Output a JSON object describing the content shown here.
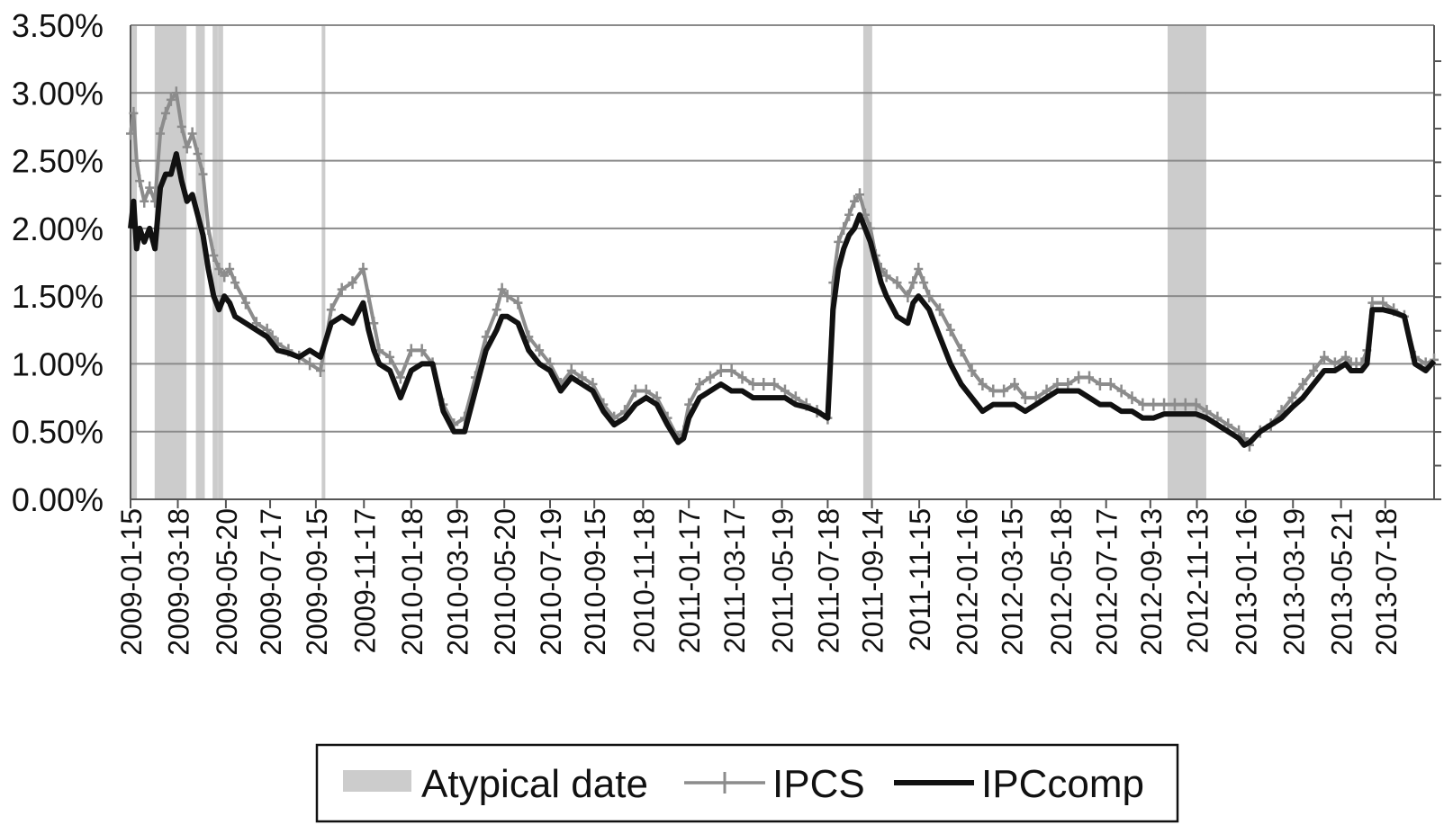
{
  "chart_data": {
    "type": "line",
    "title": "",
    "xlabel": "",
    "ylabel": "",
    "x_range": [
      "2009-01-15",
      "2013-09-20"
    ],
    "ylim": [
      0,
      0.035
    ],
    "y_ticks": [
      0,
      0.005,
      0.01,
      0.015,
      0.02,
      0.025,
      0.03,
      0.035
    ],
    "y_tick_labels": [
      "0.00%",
      "0.50%",
      "1.00%",
      "1.50%",
      "2.00%",
      "2.50%",
      "3.00%",
      "3.50%"
    ],
    "x_tick_labels": [
      "2009-01-15",
      "2009-03-18",
      "2009-05-20",
      "2009-07-17",
      "2009-09-15",
      "2009-11-17",
      "2010-01-18",
      "2010-03-19",
      "2010-05-20",
      "2010-07-19",
      "2010-09-15",
      "2010-11-18",
      "2011-01-17",
      "2011-03-17",
      "2011-05-19",
      "2011-07-18",
      "2011-09-14",
      "2011-11-15",
      "2012-01-16",
      "2012-03-15",
      "2012-05-18",
      "2012-07-17",
      "2012-09-13",
      "2012-11-13",
      "2013-01-16",
      "2013-03-19",
      "2013-05-21",
      "2013-07-18"
    ],
    "grid": true,
    "legend_position": "bottom",
    "colors": {
      "atypical": "#cccccc",
      "ipcs": "#8c8c8c",
      "ipccomp": "#111111",
      "grid": "#8a8a8a"
    },
    "atypical_dates": [
      "2009-01-16",
      "2009-01-19",
      "2009-01-21",
      "2009-02-18",
      "2009-02-20",
      "2009-02-23",
      "2009-02-25",
      "2009-02-27",
      "2009-03-02",
      "2009-03-04",
      "2009-03-06",
      "2009-03-09",
      "2009-03-11",
      "2009-03-13",
      "2009-03-16",
      "2009-03-18",
      "2009-03-20",
      "2009-03-23",
      "2009-03-25",
      "2009-03-27",
      "2009-04-13",
      "2009-04-15",
      "2009-04-17",
      "2009-04-20",
      "2009-05-05",
      "2009-05-07",
      "2009-05-12",
      "2009-05-14",
      "2009-09-25",
      "2011-09-05",
      "2011-09-07",
      "2011-09-09",
      "2011-09-12",
      "2012-10-08",
      "2012-10-10",
      "2012-10-12",
      "2012-10-15",
      "2012-10-17",
      "2012-10-19",
      "2012-10-22",
      "2012-10-24",
      "2012-10-26",
      "2012-10-29",
      "2012-10-31",
      "2012-11-02",
      "2012-11-05",
      "2012-11-07",
      "2012-11-09",
      "2012-11-12",
      "2012-11-14",
      "2012-11-16",
      "2012-11-19",
      "2012-11-21",
      "2012-11-23"
    ],
    "series": [
      {
        "name": "IPCS",
        "x": [
          "2009-01-15",
          "2009-01-19",
          "2009-01-23",
          "2009-01-27",
          "2009-02-02",
          "2009-02-09",
          "2009-02-16",
          "2009-02-23",
          "2009-03-02",
          "2009-03-09",
          "2009-03-16",
          "2009-03-23",
          "2009-03-30",
          "2009-04-06",
          "2009-04-13",
          "2009-04-20",
          "2009-04-27",
          "2009-05-04",
          "2009-05-11",
          "2009-05-18",
          "2009-05-25",
          "2009-06-01",
          "2009-06-15",
          "2009-06-29",
          "2009-07-13",
          "2009-07-20",
          "2009-07-27",
          "2009-08-10",
          "2009-08-24",
          "2009-09-07",
          "2009-09-21",
          "2009-10-05",
          "2009-10-19",
          "2009-11-02",
          "2009-11-16",
          "2009-11-23",
          "2009-11-30",
          "2009-12-07",
          "2009-12-21",
          "2010-01-04",
          "2010-01-18",
          "2010-02-01",
          "2010-02-15",
          "2010-03-01",
          "2010-03-15",
          "2010-03-29",
          "2010-04-12",
          "2010-04-26",
          "2010-05-10",
          "2010-05-17",
          "2010-05-24",
          "2010-06-07",
          "2010-06-21",
          "2010-07-05",
          "2010-07-19",
          "2010-08-02",
          "2010-08-16",
          "2010-08-30",
          "2010-09-13",
          "2010-09-27",
          "2010-10-11",
          "2010-10-25",
          "2010-11-08",
          "2010-11-22",
          "2010-12-06",
          "2010-12-20",
          "2011-01-03",
          "2011-01-10",
          "2011-01-17",
          "2011-01-31",
          "2011-02-14",
          "2011-02-28",
          "2011-03-14",
          "2011-03-28",
          "2011-04-11",
          "2011-04-25",
          "2011-05-09",
          "2011-05-23",
          "2011-06-06",
          "2011-06-20",
          "2011-07-04",
          "2011-07-18",
          "2011-07-25",
          "2011-08-01",
          "2011-08-08",
          "2011-08-15",
          "2011-08-22",
          "2011-08-29",
          "2011-09-05",
          "2011-09-12",
          "2011-09-19",
          "2011-09-26",
          "2011-10-03",
          "2011-10-17",
          "2011-10-31",
          "2011-11-07",
          "2011-11-14",
          "2011-11-21",
          "2011-11-28",
          "2011-12-12",
          "2011-12-26",
          "2012-01-09",
          "2012-01-23",
          "2012-02-06",
          "2012-02-20",
          "2012-03-05",
          "2012-03-19",
          "2012-04-02",
          "2012-04-16",
          "2012-04-30",
          "2012-05-14",
          "2012-05-28",
          "2012-06-11",
          "2012-06-25",
          "2012-07-09",
          "2012-07-23",
          "2012-08-06",
          "2012-08-20",
          "2012-09-03",
          "2012-09-17",
          "2012-10-01",
          "2012-10-15",
          "2012-10-29",
          "2012-11-12",
          "2012-11-26",
          "2012-12-10",
          "2012-12-24",
          "2013-01-07",
          "2013-01-14",
          "2013-01-21",
          "2013-02-04",
          "2013-02-18",
          "2013-03-04",
          "2013-03-18",
          "2013-04-01",
          "2013-04-15",
          "2013-04-29",
          "2013-05-13",
          "2013-05-27",
          "2013-06-03",
          "2013-06-10",
          "2013-06-17",
          "2013-06-24",
          "2013-07-01",
          "2013-07-15",
          "2013-07-29",
          "2013-08-12",
          "2013-08-26",
          "2013-09-09",
          "2013-09-20"
        ],
        "values": [
          0.027,
          0.0285,
          0.025,
          0.0235,
          0.022,
          0.023,
          0.022,
          0.027,
          0.0285,
          0.0295,
          0.03,
          0.0275,
          0.026,
          0.027,
          0.0255,
          0.024,
          0.02,
          0.018,
          0.017,
          0.0165,
          0.017,
          0.016,
          0.0145,
          0.013,
          0.0125,
          0.012,
          0.0115,
          0.011,
          0.0105,
          0.01,
          0.0095,
          0.014,
          0.0155,
          0.016,
          0.017,
          0.015,
          0.013,
          0.011,
          0.0105,
          0.009,
          0.011,
          0.011,
          0.01,
          0.007,
          0.0055,
          0.006,
          0.009,
          0.012,
          0.014,
          0.0155,
          0.015,
          0.0145,
          0.012,
          0.011,
          0.01,
          0.0085,
          0.0095,
          0.009,
          0.0085,
          0.007,
          0.006,
          0.0065,
          0.008,
          0.008,
          0.0075,
          0.006,
          0.0045,
          0.005,
          0.007,
          0.0085,
          0.009,
          0.0095,
          0.0095,
          0.009,
          0.0085,
          0.0085,
          0.0085,
          0.008,
          0.0075,
          0.007,
          0.0065,
          0.006,
          0.016,
          0.019,
          0.02,
          0.021,
          0.022,
          0.0225,
          0.021,
          0.02,
          0.018,
          0.017,
          0.0165,
          0.016,
          0.015,
          0.016,
          0.017,
          0.016,
          0.015,
          0.014,
          0.0125,
          0.011,
          0.0095,
          0.0085,
          0.008,
          0.008,
          0.0085,
          0.0075,
          0.0075,
          0.008,
          0.0085,
          0.0085,
          0.009,
          0.009,
          0.0085,
          0.0085,
          0.008,
          0.0075,
          0.007,
          0.007,
          0.007,
          0.007,
          0.007,
          0.007,
          0.0065,
          0.006,
          0.0055,
          0.005,
          0.0045,
          0.004,
          0.005,
          0.0055,
          0.0065,
          0.0075,
          0.0085,
          0.0095,
          0.0105,
          0.01,
          0.0105,
          0.01,
          0.01,
          0.01,
          0.011,
          0.0145,
          0.0145,
          0.014,
          0.0135,
          0.0105,
          0.01,
          0.0103
        ]
      },
      {
        "name": "IPCcomp",
        "x": [
          "2009-01-15",
          "2009-01-19",
          "2009-01-23",
          "2009-01-27",
          "2009-02-02",
          "2009-02-09",
          "2009-02-16",
          "2009-02-23",
          "2009-03-02",
          "2009-03-09",
          "2009-03-16",
          "2009-03-23",
          "2009-03-30",
          "2009-04-06",
          "2009-04-13",
          "2009-04-20",
          "2009-04-27",
          "2009-05-04",
          "2009-05-11",
          "2009-05-18",
          "2009-05-25",
          "2009-06-01",
          "2009-06-15",
          "2009-06-29",
          "2009-07-13",
          "2009-07-20",
          "2009-07-27",
          "2009-08-10",
          "2009-08-24",
          "2009-09-07",
          "2009-09-21",
          "2009-10-05",
          "2009-10-19",
          "2009-11-02",
          "2009-11-16",
          "2009-11-23",
          "2009-11-30",
          "2009-12-07",
          "2009-12-21",
          "2010-01-04",
          "2010-01-18",
          "2010-02-01",
          "2010-02-15",
          "2010-03-01",
          "2010-03-15",
          "2010-03-29",
          "2010-04-12",
          "2010-04-26",
          "2010-05-10",
          "2010-05-17",
          "2010-05-24",
          "2010-06-07",
          "2010-06-21",
          "2010-07-05",
          "2010-07-19",
          "2010-08-02",
          "2010-08-16",
          "2010-08-30",
          "2010-09-13",
          "2010-09-27",
          "2010-10-11",
          "2010-10-25",
          "2010-11-08",
          "2010-11-22",
          "2010-12-06",
          "2010-12-20",
          "2011-01-03",
          "2011-01-10",
          "2011-01-17",
          "2011-01-31",
          "2011-02-14",
          "2011-02-28",
          "2011-03-14",
          "2011-03-28",
          "2011-04-11",
          "2011-04-25",
          "2011-05-09",
          "2011-05-23",
          "2011-06-06",
          "2011-06-20",
          "2011-07-04",
          "2011-07-18",
          "2011-07-25",
          "2011-08-01",
          "2011-08-08",
          "2011-08-15",
          "2011-08-22",
          "2011-08-29",
          "2011-09-05",
          "2011-09-12",
          "2011-09-19",
          "2011-09-26",
          "2011-10-03",
          "2011-10-17",
          "2011-10-31",
          "2011-11-07",
          "2011-11-14",
          "2011-11-21",
          "2011-11-28",
          "2011-12-12",
          "2011-12-26",
          "2012-01-09",
          "2012-01-23",
          "2012-02-06",
          "2012-02-20",
          "2012-03-05",
          "2012-03-19",
          "2012-04-02",
          "2012-04-16",
          "2012-04-30",
          "2012-05-14",
          "2012-05-28",
          "2012-06-11",
          "2012-06-25",
          "2012-07-09",
          "2012-07-23",
          "2012-08-06",
          "2012-08-20",
          "2012-09-03",
          "2012-09-17",
          "2012-10-01",
          "2012-10-15",
          "2012-10-29",
          "2012-11-12",
          "2012-11-26",
          "2012-12-10",
          "2012-12-24",
          "2013-01-07",
          "2013-01-14",
          "2013-01-21",
          "2013-02-04",
          "2013-02-18",
          "2013-03-04",
          "2013-03-18",
          "2013-04-01",
          "2013-04-15",
          "2013-04-29",
          "2013-05-13",
          "2013-05-27",
          "2013-06-03",
          "2013-06-10",
          "2013-06-17",
          "2013-06-24",
          "2013-07-01",
          "2013-07-15",
          "2013-07-29",
          "2013-08-12",
          "2013-08-26",
          "2013-09-09",
          "2013-09-20"
        ],
        "values": [
          0.02,
          0.022,
          0.0185,
          0.02,
          0.019,
          0.02,
          0.0185,
          0.023,
          0.024,
          0.024,
          0.0255,
          0.0235,
          0.022,
          0.0225,
          0.021,
          0.0195,
          0.017,
          0.015,
          0.014,
          0.015,
          0.0145,
          0.0135,
          0.013,
          0.0125,
          0.012,
          0.0115,
          0.011,
          0.0108,
          0.0105,
          0.011,
          0.0105,
          0.013,
          0.0135,
          0.013,
          0.0145,
          0.0125,
          0.011,
          0.01,
          0.0095,
          0.0075,
          0.0095,
          0.01,
          0.01,
          0.0065,
          0.005,
          0.005,
          0.008,
          0.011,
          0.0125,
          0.0135,
          0.0135,
          0.013,
          0.011,
          0.01,
          0.0095,
          0.008,
          0.009,
          0.0085,
          0.008,
          0.0065,
          0.0055,
          0.006,
          0.007,
          0.0075,
          0.007,
          0.0055,
          0.0042,
          0.0045,
          0.006,
          0.0075,
          0.008,
          0.0085,
          0.008,
          0.008,
          0.0075,
          0.0075,
          0.0075,
          0.0075,
          0.007,
          0.0068,
          0.0065,
          0.006,
          0.014,
          0.017,
          0.0185,
          0.0195,
          0.02,
          0.021,
          0.02,
          0.019,
          0.0175,
          0.016,
          0.015,
          0.0135,
          0.013,
          0.0145,
          0.015,
          0.0145,
          0.014,
          0.012,
          0.01,
          0.0085,
          0.0075,
          0.0065,
          0.007,
          0.007,
          0.007,
          0.0065,
          0.007,
          0.0075,
          0.008,
          0.008,
          0.008,
          0.0075,
          0.007,
          0.007,
          0.0065,
          0.0065,
          0.006,
          0.006,
          0.0063,
          0.0063,
          0.0063,
          0.0063,
          0.006,
          0.0055,
          0.005,
          0.0045,
          0.004,
          0.0042,
          0.005,
          0.0055,
          0.006,
          0.0068,
          0.0075,
          0.0085,
          0.0095,
          0.0095,
          0.01,
          0.0095,
          0.0095,
          0.0095,
          0.01,
          0.014,
          0.014,
          0.0138,
          0.0135,
          0.01,
          0.0095,
          0.0102
        ]
      }
    ],
    "legend": [
      {
        "key": "atypical",
        "label": "Atypical date"
      },
      {
        "key": "ipcs",
        "label": "IPCS"
      },
      {
        "key": "ipccomp",
        "label": "IPCcomp"
      }
    ]
  }
}
